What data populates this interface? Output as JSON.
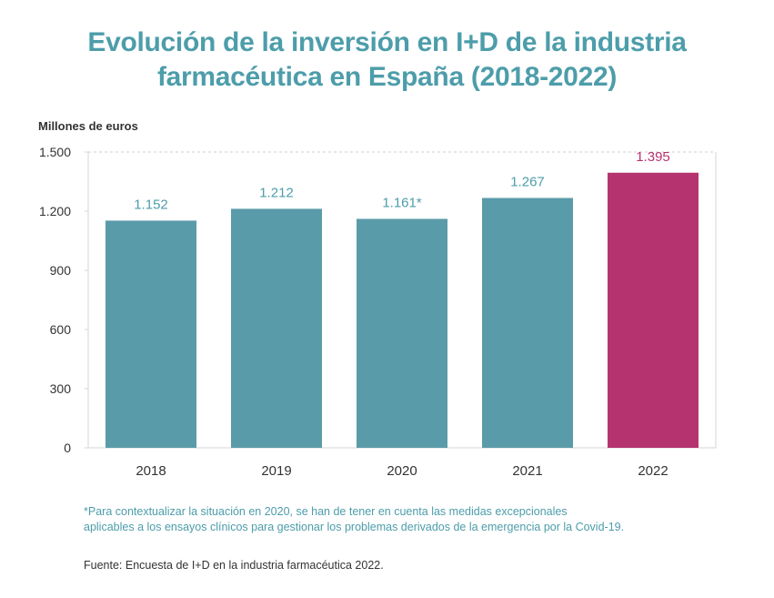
{
  "title": {
    "line1": "Evolución de la inversión en I+D de la industria",
    "line2": "farmacéutica en España (2018-2022)"
  },
  "colors": {
    "title": "#4d9daa",
    "bar": "#5a9ba9",
    "highlight": "#b5336f",
    "text": "#333333"
  },
  "chart_data": {
    "type": "bar",
    "ylabel": "Millones de euros",
    "categories": [
      "2018",
      "2019",
      "2020",
      "2021",
      "2022"
    ],
    "values": [
      1152,
      1212,
      1161,
      1267,
      1395
    ],
    "data_labels": [
      "1.152",
      "1.212",
      "1.161*",
      "1.267",
      "1.395"
    ],
    "highlight_index": 4,
    "ylim": [
      0,
      1500
    ],
    "yticks": [
      0,
      300,
      600,
      900,
      1200,
      1500
    ],
    "ytick_labels": [
      "0",
      "300",
      "600",
      "900",
      "1.200",
      "1.500"
    ],
    "grid": false
  },
  "note": {
    "line1": "*Para contextualizar la situación en 2020, se han de tener en cuenta las medidas excepcionales",
    "line2": "aplicables a los ensayos clínicos para gestionar los problemas derivados de la emergencia por la Covid-19."
  },
  "source": "Fuente: Encuesta de I+D en la industria farmacéutica 2022."
}
